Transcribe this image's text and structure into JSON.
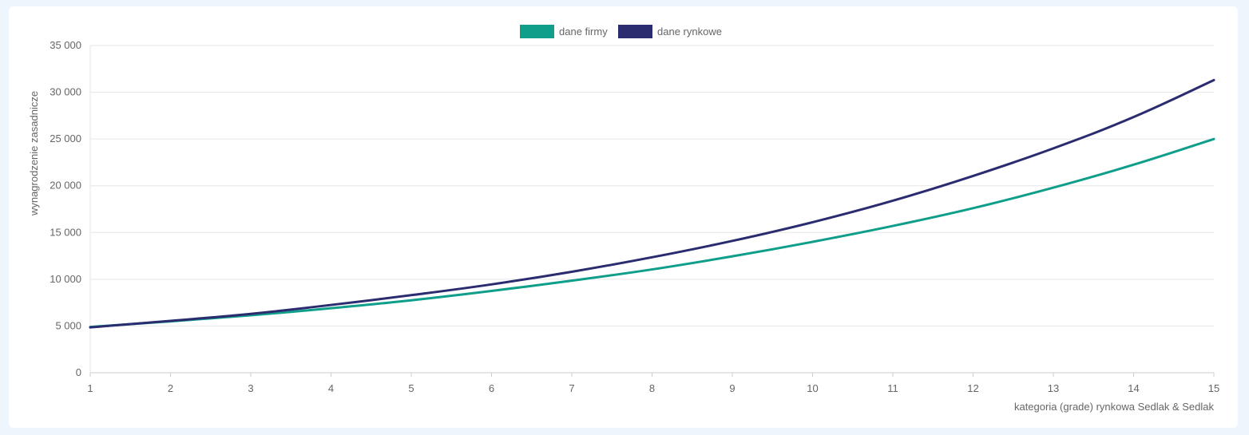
{
  "chart_data": {
    "type": "line",
    "title": "",
    "xlabel": "kategoria (grade) rynkowa Sedlak & Sedlak",
    "ylabel": "wynagrodzenie zasadnicze",
    "x": [
      1,
      2,
      3,
      4,
      5,
      6,
      7,
      8,
      9,
      10,
      11,
      12,
      13,
      14,
      15
    ],
    "x_tick_labels": [
      "1",
      "2",
      "3",
      "4",
      "5",
      "6",
      "7",
      "8",
      "9",
      "10",
      "11",
      "12",
      "13",
      "14",
      "15"
    ],
    "ylim": [
      0,
      35000
    ],
    "y_ticks": [
      0,
      5000,
      10000,
      15000,
      20000,
      25000,
      30000,
      35000
    ],
    "y_tick_labels": [
      "0",
      "5 000",
      "10 000",
      "15 000",
      "20 000",
      "25 000",
      "30 000",
      "35 000"
    ],
    "grid": true,
    "legend_position": "top-center",
    "series": [
      {
        "name": "dane firmy",
        "color": "#0f9e8a",
        "values": [
          4900,
          5500,
          6150,
          6900,
          7750,
          8750,
          9850,
          11050,
          12450,
          14000,
          15700,
          17600,
          19800,
          22250,
          25000
        ]
      },
      {
        "name": "dane rynkowe",
        "color": "#2b2c6f",
        "values": [
          4850,
          5550,
          6300,
          7250,
          8300,
          9450,
          10800,
          12350,
          14100,
          16100,
          18400,
          21050,
          24000,
          27350,
          31300
        ]
      }
    ]
  }
}
